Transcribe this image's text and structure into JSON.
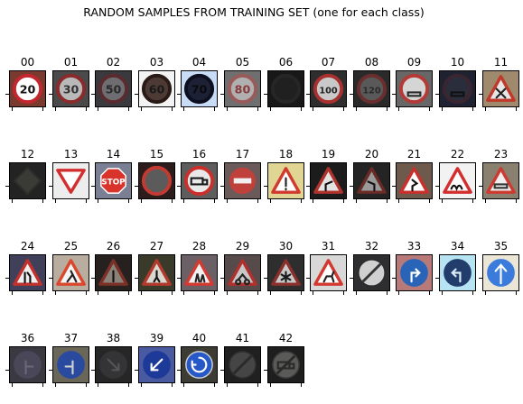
{
  "chart_data": {
    "type": "image-grid",
    "title": "RANDOM SAMPLES FROM TRAINING SET (one for each class)",
    "grid": {
      "rows": 4,
      "cols": 12
    },
    "samples": [
      {
        "label": "00",
        "kind": "circle-ring",
        "glyph": "20",
        "bg": "#7a3a2e",
        "fg": "#ffffff",
        "ring": "#c2262e",
        "ink": "#111111"
      },
      {
        "label": "01",
        "kind": "circle-ring",
        "glyph": "30",
        "bg": "#4a4a4a",
        "fg": "#b9b9b9",
        "ring": "#8a2a2a",
        "ink": "#333333"
      },
      {
        "label": "02",
        "kind": "circle-ring",
        "glyph": "50",
        "bg": "#3a3a3e",
        "fg": "#6e6e72",
        "ring": "#5a2a2e",
        "ink": "#2a2a2a"
      },
      {
        "label": "03",
        "kind": "circle-ring",
        "glyph": "60",
        "bg": "#f3f3f3",
        "fg": "#4d3a34",
        "ring": "#2a1a16",
        "ink": "#1a1a1a"
      },
      {
        "label": "04",
        "kind": "circle-ring",
        "glyph": "70",
        "bg": "#c9dcf7",
        "fg": "#1d2136",
        "ring": "#0d0f1e",
        "ink": "#0a0a0a"
      },
      {
        "label": "05",
        "kind": "circle-ring",
        "glyph": "80",
        "bg": "#6f6f6f",
        "fg": "#b0b0b0",
        "ring": "#9a5a5a",
        "ink": "#8a3a3a"
      },
      {
        "label": "06",
        "kind": "circle-ring",
        "glyph": "",
        "bg": "#181818",
        "fg": "#202020",
        "ring": "#262626",
        "ink": "#303030"
      },
      {
        "label": "07",
        "kind": "circle-ring",
        "glyph": "100",
        "bg": "#2e2e2e",
        "fg": "#c9c9c9",
        "ring": "#a8302e",
        "ink": "#222222"
      },
      {
        "label": "08",
        "kind": "circle-ring",
        "glyph": "120",
        "bg": "#2a2a2a",
        "fg": "#595959",
        "ring": "#6a2e2e",
        "ink": "#2a2a2a"
      },
      {
        "label": "09",
        "kind": "circle-ring",
        "glyph": "car",
        "bg": "#676767",
        "fg": "#d5d5d5",
        "ring": "#b33a36",
        "ink": "#2a2a2a"
      },
      {
        "label": "10",
        "kind": "circle-ring",
        "glyph": "car",
        "bg": "#1f2230",
        "fg": "#2a2d3b",
        "ring": "#3a2630",
        "ink": "#111111"
      },
      {
        "label": "11",
        "kind": "triangle",
        "glyph": "x",
        "bg": "#a08a6e",
        "fg": "#e6e6e6",
        "ring": "#c0392b",
        "ink": "#222222"
      },
      {
        "label": "12",
        "kind": "diamond",
        "glyph": "",
        "bg": "#232323",
        "fg": "#3b3b36",
        "ring": "#2d2d2a",
        "ink": "#1a1a1a"
      },
      {
        "label": "13",
        "kind": "inv-triangle",
        "glyph": "",
        "bg": "#ededed",
        "fg": "#ffffff",
        "ring": "#d22e2e",
        "ink": "#333333"
      },
      {
        "label": "14",
        "kind": "octagon",
        "glyph": "STOP",
        "bg": "#7a7f94",
        "fg": "#d9342b",
        "ring": "#d9342b",
        "ink": "#ffffff"
      },
      {
        "label": "15",
        "kind": "circle-ring",
        "glyph": "",
        "bg": "#2c1c1c",
        "fg": "#5b5b5b",
        "ring": "#c23b33",
        "ink": "#333333"
      },
      {
        "label": "16",
        "kind": "circle-ring",
        "glyph": "truck",
        "bg": "#5d5d5d",
        "fg": "#e8e8e8",
        "ring": "#c9302c",
        "ink": "#1a1a1a"
      },
      {
        "label": "17",
        "kind": "no-entry",
        "glyph": "",
        "bg": "#6a5a5a",
        "fg": "#c0403b",
        "ring": "#c0403b",
        "ink": "#f0f0f0"
      },
      {
        "label": "18",
        "kind": "triangle",
        "glyph": "!",
        "bg": "#e0d592",
        "fg": "#ffffff",
        "ring": "#d03a2f",
        "ink": "#222222"
      },
      {
        "label": "19",
        "kind": "triangle",
        "glyph": "curve-l",
        "bg": "#1c1c1c",
        "fg": "#e3e3e3",
        "ring": "#b0322c",
        "ink": "#111111"
      },
      {
        "label": "20",
        "kind": "triangle",
        "glyph": "curve-r",
        "bg": "#242424",
        "fg": "#9a9a9a",
        "ring": "#6a2a26",
        "ink": "#111111"
      },
      {
        "label": "21",
        "kind": "triangle",
        "glyph": "double-curve",
        "bg": "#6d5a4d",
        "fg": "#ffffff",
        "ring": "#c9302c",
        "ink": "#111111"
      },
      {
        "label": "22",
        "kind": "triangle",
        "glyph": "bump",
        "bg": "#f2f2f2",
        "fg": "#ffffff",
        "ring": "#d22e2e",
        "ink": "#111111"
      },
      {
        "label": "23",
        "kind": "triangle",
        "glyph": "car",
        "bg": "#8a8070",
        "fg": "#efefef",
        "ring": "#cc3a30",
        "ink": "#333333"
      },
      {
        "label": "24",
        "kind": "triangle",
        "glyph": "narrow",
        "bg": "#40405a",
        "fg": "#efefef",
        "ring": "#c0302c",
        "ink": "#111111"
      },
      {
        "label": "25",
        "kind": "triangle",
        "glyph": "worker",
        "bg": "#b8ad9e",
        "fg": "#f5f5f5",
        "ring": "#d9482e",
        "ink": "#222222"
      },
      {
        "label": "26",
        "kind": "triangle",
        "glyph": "signal",
        "bg": "#26211e",
        "fg": "#8a8278",
        "ring": "#7a3026",
        "ink": "#111111"
      },
      {
        "label": "27",
        "kind": "triangle",
        "glyph": "walker",
        "bg": "#3a3a2a",
        "fg": "#d8d8d0",
        "ring": "#b23a2c",
        "ink": "#111111"
      },
      {
        "label": "28",
        "kind": "triangle",
        "glyph": "children",
        "bg": "#6a6066",
        "fg": "#f0f0f0",
        "ring": "#d23a32",
        "ink": "#222222"
      },
      {
        "label": "29",
        "kind": "triangle",
        "glyph": "bike",
        "bg": "#564a4a",
        "fg": "#c8c8c8",
        "ring": "#b2302c",
        "ink": "#222222"
      },
      {
        "label": "30",
        "kind": "triangle",
        "glyph": "snow",
        "bg": "#2e2e2e",
        "fg": "#c9c9c9",
        "ring": "#8a302c",
        "ink": "#1a1a1a"
      },
      {
        "label": "31",
        "kind": "triangle",
        "glyph": "deer",
        "bg": "#d8d8d8",
        "fg": "#ffffff",
        "ring": "#d23a30",
        "ink": "#222222"
      },
      {
        "label": "32",
        "kind": "end-limit",
        "glyph": "",
        "bg": "#2e2e30",
        "fg": "#d0d0d0",
        "ring": "#2a2a2a",
        "ink": "#333333"
      },
      {
        "label": "33",
        "kind": "blue-circle",
        "glyph": "turn-right",
        "bg": "#b87a78",
        "fg": "#2a64b8",
        "ring": "#2a64b8",
        "ink": "#ffffff"
      },
      {
        "label": "34",
        "kind": "blue-circle",
        "glyph": "turn-left",
        "bg": "#b7e4f2",
        "fg": "#223c6c",
        "ring": "#223c6c",
        "ink": "#d9eaf5"
      },
      {
        "label": "35",
        "kind": "blue-circle",
        "glyph": "ahead",
        "bg": "#ece6d6",
        "fg": "#3a7bdc",
        "ring": "#3a7bdc",
        "ink": "#ffffff"
      },
      {
        "label": "36",
        "kind": "blue-circle",
        "glyph": "ahead-right",
        "bg": "#3a3840",
        "fg": "#4a4858",
        "ring": "#4a4858",
        "ink": "#6a6878"
      },
      {
        "label": "37",
        "kind": "blue-circle",
        "glyph": "ahead-left",
        "bg": "#6a6658",
        "fg": "#2a4aa0",
        "ring": "#2a4aa0",
        "ink": "#d0d0d0"
      },
      {
        "label": "38",
        "kind": "blue-circle",
        "glyph": "keep-right",
        "bg": "#262626",
        "fg": "#343436",
        "ring": "#343436",
        "ink": "#555558"
      },
      {
        "label": "39",
        "kind": "blue-circle",
        "glyph": "keep-left",
        "bg": "#4a5aa0",
        "fg": "#1e3a98",
        "ring": "#1e3a98",
        "ink": "#ffffff"
      },
      {
        "label": "40",
        "kind": "blue-circle",
        "glyph": "roundabout",
        "bg": "#3c3c34",
        "fg": "#2658c8",
        "ring": "#d0d0d0",
        "ink": "#ffffff"
      },
      {
        "label": "41",
        "kind": "end-limit",
        "glyph": "",
        "bg": "#202020",
        "fg": "#454545",
        "ring": "#2e2e2e",
        "ink": "#2a2a2a"
      },
      {
        "label": "42",
        "kind": "end-limit",
        "glyph": "truck",
        "bg": "#1e1e1e",
        "fg": "#5a5a58",
        "ring": "#3a3a38",
        "ink": "#2a2a2a"
      }
    ]
  }
}
